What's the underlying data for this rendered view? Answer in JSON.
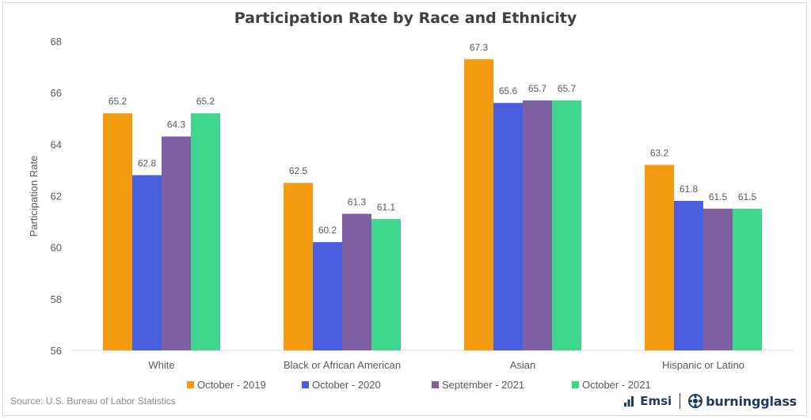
{
  "chart_data": {
    "type": "bar",
    "title": "Participation Rate by Race and Ethnicity",
    "ylabel": "Participation Rate",
    "xlabel": "",
    "ylim": [
      56,
      68
    ],
    "yticks": [
      56,
      58,
      60,
      62,
      64,
      66,
      68
    ],
    "categories": [
      "White",
      "Black or African American",
      "Asian",
      "Hispanic or Latino"
    ],
    "series": [
      {
        "name": "October - 2019",
        "color": "#f39c12",
        "values": [
          65.2,
          62.5,
          67.3,
          63.2
        ]
      },
      {
        "name": "October - 2020",
        "color": "#4a5ee0",
        "values": [
          62.8,
          60.2,
          65.6,
          61.8
        ]
      },
      {
        "name": "September - 2021",
        "color": "#7e60a3",
        "values": [
          64.3,
          61.3,
          65.7,
          61.5
        ]
      },
      {
        "name": "October - 2021",
        "color": "#3dd68c",
        "values": [
          65.2,
          61.1,
          65.7,
          61.5
        ]
      }
    ],
    "data_labels": true,
    "legend_position": "bottom",
    "grid": false
  },
  "footer": {
    "source": "Source:  U.S. Bureau of Labor Statistics",
    "logo_emsi": "Emsi",
    "logo_burningglass": "burningglass"
  }
}
